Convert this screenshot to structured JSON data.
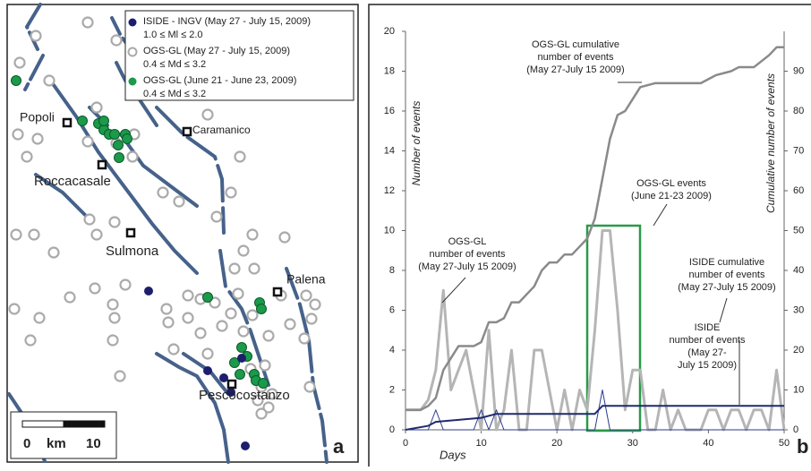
{
  "map": {
    "legend": [
      {
        "label": "ISIDE - INGV (May 27 - July 15, 2009)",
        "range": "1.0 ≤ Ml ≤ 2.0"
      },
      {
        "label": "OGS-GL (May 27 - July 15, 2009)",
        "range": "0.4 ≤ Md ≤ 3.2"
      },
      {
        "label": "OGS-GL (June 21 - June 23, 2009)",
        "range": "0.4 ≤ Md ≤ 3.2"
      }
    ],
    "places": [
      "Popoli",
      "Caramanico",
      "Roccacasale",
      "Sulmona",
      "Palena",
      "Pescocostanzo"
    ],
    "scale": {
      "start": "0",
      "unit": "km",
      "end": "10"
    },
    "panel_label": "a"
  },
  "chart_data": {
    "type": "line",
    "panel_label": "b",
    "x_label": "Days",
    "y_label": "Number of events",
    "y2_label": "Cumulative number of events",
    "xlim": [
      0,
      50
    ],
    "xticks": [
      0,
      10,
      20,
      30,
      40,
      50
    ],
    "ylim": [
      0,
      20
    ],
    "yticks": [
      0,
      2,
      4,
      6,
      8,
      10,
      12,
      14,
      16,
      18,
      20
    ],
    "y2lim": [
      0,
      100
    ],
    "y2ticks": [
      0,
      10,
      20,
      30,
      40,
      50,
      60,
      70,
      80,
      90
    ],
    "annotations": [
      [
        "OGS-GL cumulative",
        "number of events",
        "(May 27-July 15 2009)"
      ],
      [
        "OGS-GL events",
        "(June 21-23 2009)"
      ],
      [
        "OGS-GL",
        "number of events",
        "(May 27-July 15 2009)"
      ],
      [
        "ISIDE cumulative",
        "number of events",
        "(May 27-July 15 2009)"
      ],
      [
        "ISIDE",
        "number of events",
        "(May 27-",
        "July 15 2009)"
      ]
    ],
    "series": [
      {
        "color": "#b5b5b5",
        "width": 3,
        "x": [
          0,
          1,
          2,
          3,
          4,
          5,
          6,
          7,
          8,
          9,
          10,
          11,
          12,
          13,
          14,
          15,
          16,
          17,
          18,
          19,
          20,
          21,
          22,
          23,
          24,
          25,
          26,
          27,
          28,
          29,
          30,
          31,
          32,
          33,
          34,
          35,
          36,
          37,
          38,
          39,
          40,
          41,
          42,
          43,
          44,
          45,
          46,
          47,
          48,
          49,
          50
        ],
        "values": [
          1,
          1,
          1,
          1.5,
          3,
          7,
          2,
          3,
          4,
          2,
          0,
          5,
          0,
          1,
          4,
          0,
          0,
          4,
          4,
          2,
          0,
          2,
          0,
          2,
          1,
          5,
          10,
          10,
          6,
          1,
          3,
          3,
          0,
          0,
          2,
          0,
          1,
          0,
          0,
          0,
          1,
          1,
          0,
          1,
          1,
          0,
          1,
          1,
          0,
          3,
          0
        ]
      },
      {
        "color": "#2b3a8c",
        "width": 1,
        "x": [
          0,
          3,
          4,
          5,
          9,
          10,
          11,
          12,
          13,
          25,
          26,
          27,
          50
        ],
        "values": [
          0,
          0,
          1,
          0,
          0,
          1,
          0,
          1,
          0,
          0,
          2,
          0,
          0
        ]
      },
      {
        "color": "#8a8a8a",
        "width": 2.5,
        "axis": "y2",
        "x": [
          0,
          2,
          3,
          4,
          5,
          6,
          7,
          9,
          10,
          11,
          12,
          13,
          14,
          15,
          17,
          18,
          19,
          20,
          21,
          22,
          23,
          24,
          25,
          26,
          27,
          28,
          29,
          30,
          31,
          33,
          39,
          40,
          41,
          43,
          44,
          46,
          48,
          49,
          50
        ],
        "values": [
          5,
          5,
          6,
          8,
          15,
          18,
          21,
          21,
          22,
          27,
          27,
          28,
          32,
          32,
          36,
          40,
          42,
          42,
          44,
          44,
          46,
          48,
          53,
          63,
          73,
          79,
          80,
          83,
          86,
          87,
          87,
          88,
          89,
          90,
          91,
          91,
          94,
          96,
          96
        ]
      },
      {
        "color": "#1f2a6e",
        "width": 2,
        "axis": "y2",
        "x": [
          0,
          3,
          4,
          10,
          12,
          25,
          26,
          50
        ],
        "values": [
          0,
          1,
          2,
          3,
          4,
          4,
          6,
          6
        ]
      }
    ]
  }
}
